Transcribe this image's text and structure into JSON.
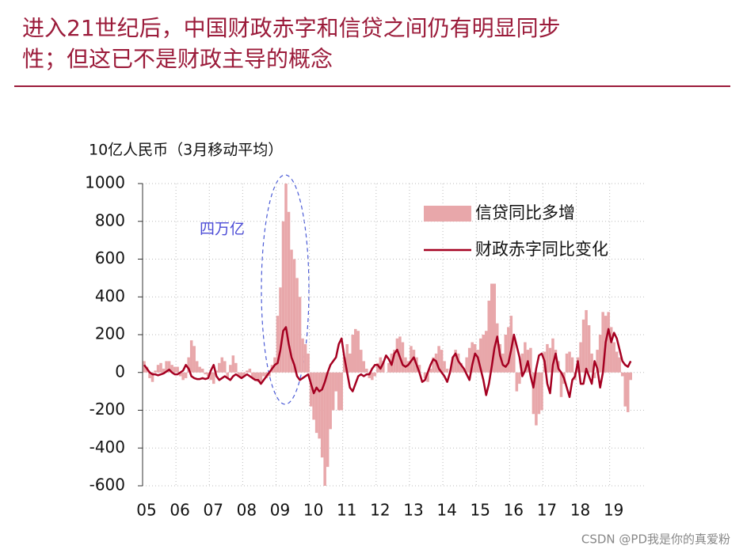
{
  "title": "进入21世纪后，中国财政赤字和信贷之间仍有明显同步性；但这已不是财政主导的概念",
  "watermark": "CSDN @PD我是你的真爱粉",
  "chart_data": {
    "type": "bar-line",
    "y_label": "10亿人民币（3月移动平均）",
    "annotation": "四万亿",
    "categories": [
      "05",
      null,
      null,
      null,
      null,
      null,
      null,
      null,
      null,
      null,
      null,
      null,
      "06",
      null,
      null,
      null,
      null,
      null,
      null,
      null,
      null,
      null,
      null,
      null,
      "07",
      null,
      null,
      null,
      null,
      null,
      null,
      null,
      null,
      null,
      null,
      null,
      "08",
      null,
      null,
      null,
      null,
      null,
      null,
      null,
      null,
      null,
      null,
      null,
      "09",
      null,
      null,
      null,
      null,
      null,
      null,
      null,
      null,
      null,
      null,
      null,
      "10",
      null,
      null,
      null,
      null,
      null,
      null,
      null,
      null,
      null,
      null,
      null,
      "11",
      null,
      null,
      null,
      null,
      null,
      null,
      null,
      null,
      null,
      null,
      null,
      "12",
      null,
      null,
      null,
      null,
      null,
      null,
      null,
      null,
      null,
      null,
      null,
      "13",
      null,
      null,
      null,
      null,
      null,
      null,
      null,
      null,
      null,
      null,
      null,
      "14",
      null,
      null,
      null,
      null,
      null,
      null,
      null,
      null,
      null,
      null,
      null,
      "15",
      null,
      null,
      null,
      null,
      null,
      null,
      null,
      null,
      null,
      null,
      null,
      "16",
      null,
      null,
      null,
      null,
      null,
      null,
      null,
      null,
      null,
      null,
      null,
      "17",
      null,
      null,
      null,
      null,
      null,
      null,
      null,
      null,
      null,
      null,
      null,
      "18",
      null,
      null,
      null,
      null,
      null,
      null,
      null,
      null,
      null,
      null,
      null,
      "19",
      null,
      null,
      null,
      null,
      null,
      null,
      null
    ],
    "series": [
      {
        "name": "信贷同比多增",
        "kind": "bar",
        "color": "#e8a7aa",
        "values": [
          60,
          30,
          -30,
          -50,
          10,
          40,
          50,
          20,
          60,
          60,
          40,
          30,
          30,
          -20,
          -40,
          -30,
          80,
          170,
          140,
          60,
          30,
          20,
          -10,
          -20,
          -40,
          -60,
          10,
          50,
          80,
          60,
          -30,
          40,
          90,
          50,
          -20,
          -30,
          -20,
          10,
          20,
          -30,
          -40,
          -50,
          -60,
          -20,
          -30,
          -20,
          40,
          80,
          300,
          450,
          800,
          1000,
          850,
          650,
          600,
          500,
          400,
          180,
          150,
          100,
          -180,
          -250,
          -320,
          -350,
          -450,
          -600,
          -500,
          -300,
          -200,
          -100,
          -200,
          -200,
          80,
          150,
          100,
          200,
          230,
          220,
          120,
          60,
          20,
          -30,
          -40,
          -20,
          50,
          80,
          60,
          0,
          50,
          100,
          120,
          180,
          190,
          160,
          80,
          60,
          140,
          120,
          80,
          40,
          0,
          -30,
          -50,
          20,
          80,
          100,
          140,
          120,
          60,
          20,
          0,
          80,
          120,
          100,
          50,
          20,
          80,
          130,
          160,
          150,
          120,
          180,
          200,
          220,
          380,
          470,
          470,
          260,
          150,
          100,
          200,
          240,
          300,
          180,
          -100,
          -60,
          100,
          160,
          120,
          130,
          -220,
          -280,
          -220,
          -200,
          110,
          150,
          130,
          180,
          120,
          60,
          -130,
          -60,
          100,
          110,
          80,
          -40,
          80,
          160,
          280,
          330,
          250,
          100,
          -30,
          120,
          200,
          320,
          300,
          320,
          240,
          160,
          110,
          80,
          -20,
          -180,
          -210,
          -40
        ]
      },
      {
        "name": "财政赤字同比变化",
        "kind": "line",
        "color": "#a50021",
        "values": [
          40,
          20,
          0,
          -10,
          -10,
          -15,
          -10,
          -5,
          5,
          15,
          0,
          -10,
          -10,
          0,
          10,
          40,
          20,
          -20,
          -30,
          -35,
          -35,
          -30,
          -35,
          -30,
          10,
          40,
          -20,
          -40,
          -30,
          -20,
          -30,
          -40,
          -20,
          -10,
          -20,
          -30,
          -20,
          -10,
          -20,
          -30,
          -40,
          -40,
          -60,
          -40,
          -20,
          0,
          20,
          40,
          50,
          120,
          220,
          240,
          150,
          80,
          40,
          -20,
          -40,
          -30,
          -20,
          -10,
          -60,
          -110,
          -80,
          -100,
          -90,
          -50,
          0,
          40,
          60,
          80,
          150,
          180,
          80,
          0,
          -80,
          -100,
          -60,
          -20,
          -10,
          -20,
          -10,
          -10,
          20,
          40,
          40,
          20,
          50,
          90,
          70,
          40,
          100,
          120,
          80,
          40,
          30,
          40,
          60,
          80,
          40,
          0,
          -50,
          -40,
          0,
          40,
          70,
          60,
          20,
          0,
          -20,
          -50,
          0,
          80,
          100,
          60,
          40,
          20,
          -10,
          -40,
          40,
          100,
          80,
          20,
          -40,
          -120,
          -60,
          30,
          130,
          190,
          90,
          40,
          30,
          50,
          120,
          200,
          140,
          80,
          -20,
          10,
          60,
          -20,
          -80,
          20,
          90,
          100,
          60,
          -60,
          -110,
          40,
          100,
          20,
          0,
          -30,
          -80,
          -130,
          -40,
          -20,
          60,
          -60,
          -60,
          20,
          -20,
          -60,
          60,
          20,
          -80,
          0,
          160,
          230,
          160,
          210,
          180,
          120,
          60,
          40,
          30,
          60
        ]
      }
    ],
    "ylim": [
      -600,
      1000
    ],
    "yticks": [
      -600,
      -400,
      -200,
      0,
      200,
      400,
      600,
      800,
      1000
    ],
    "grid": true,
    "legend": "top-right"
  }
}
